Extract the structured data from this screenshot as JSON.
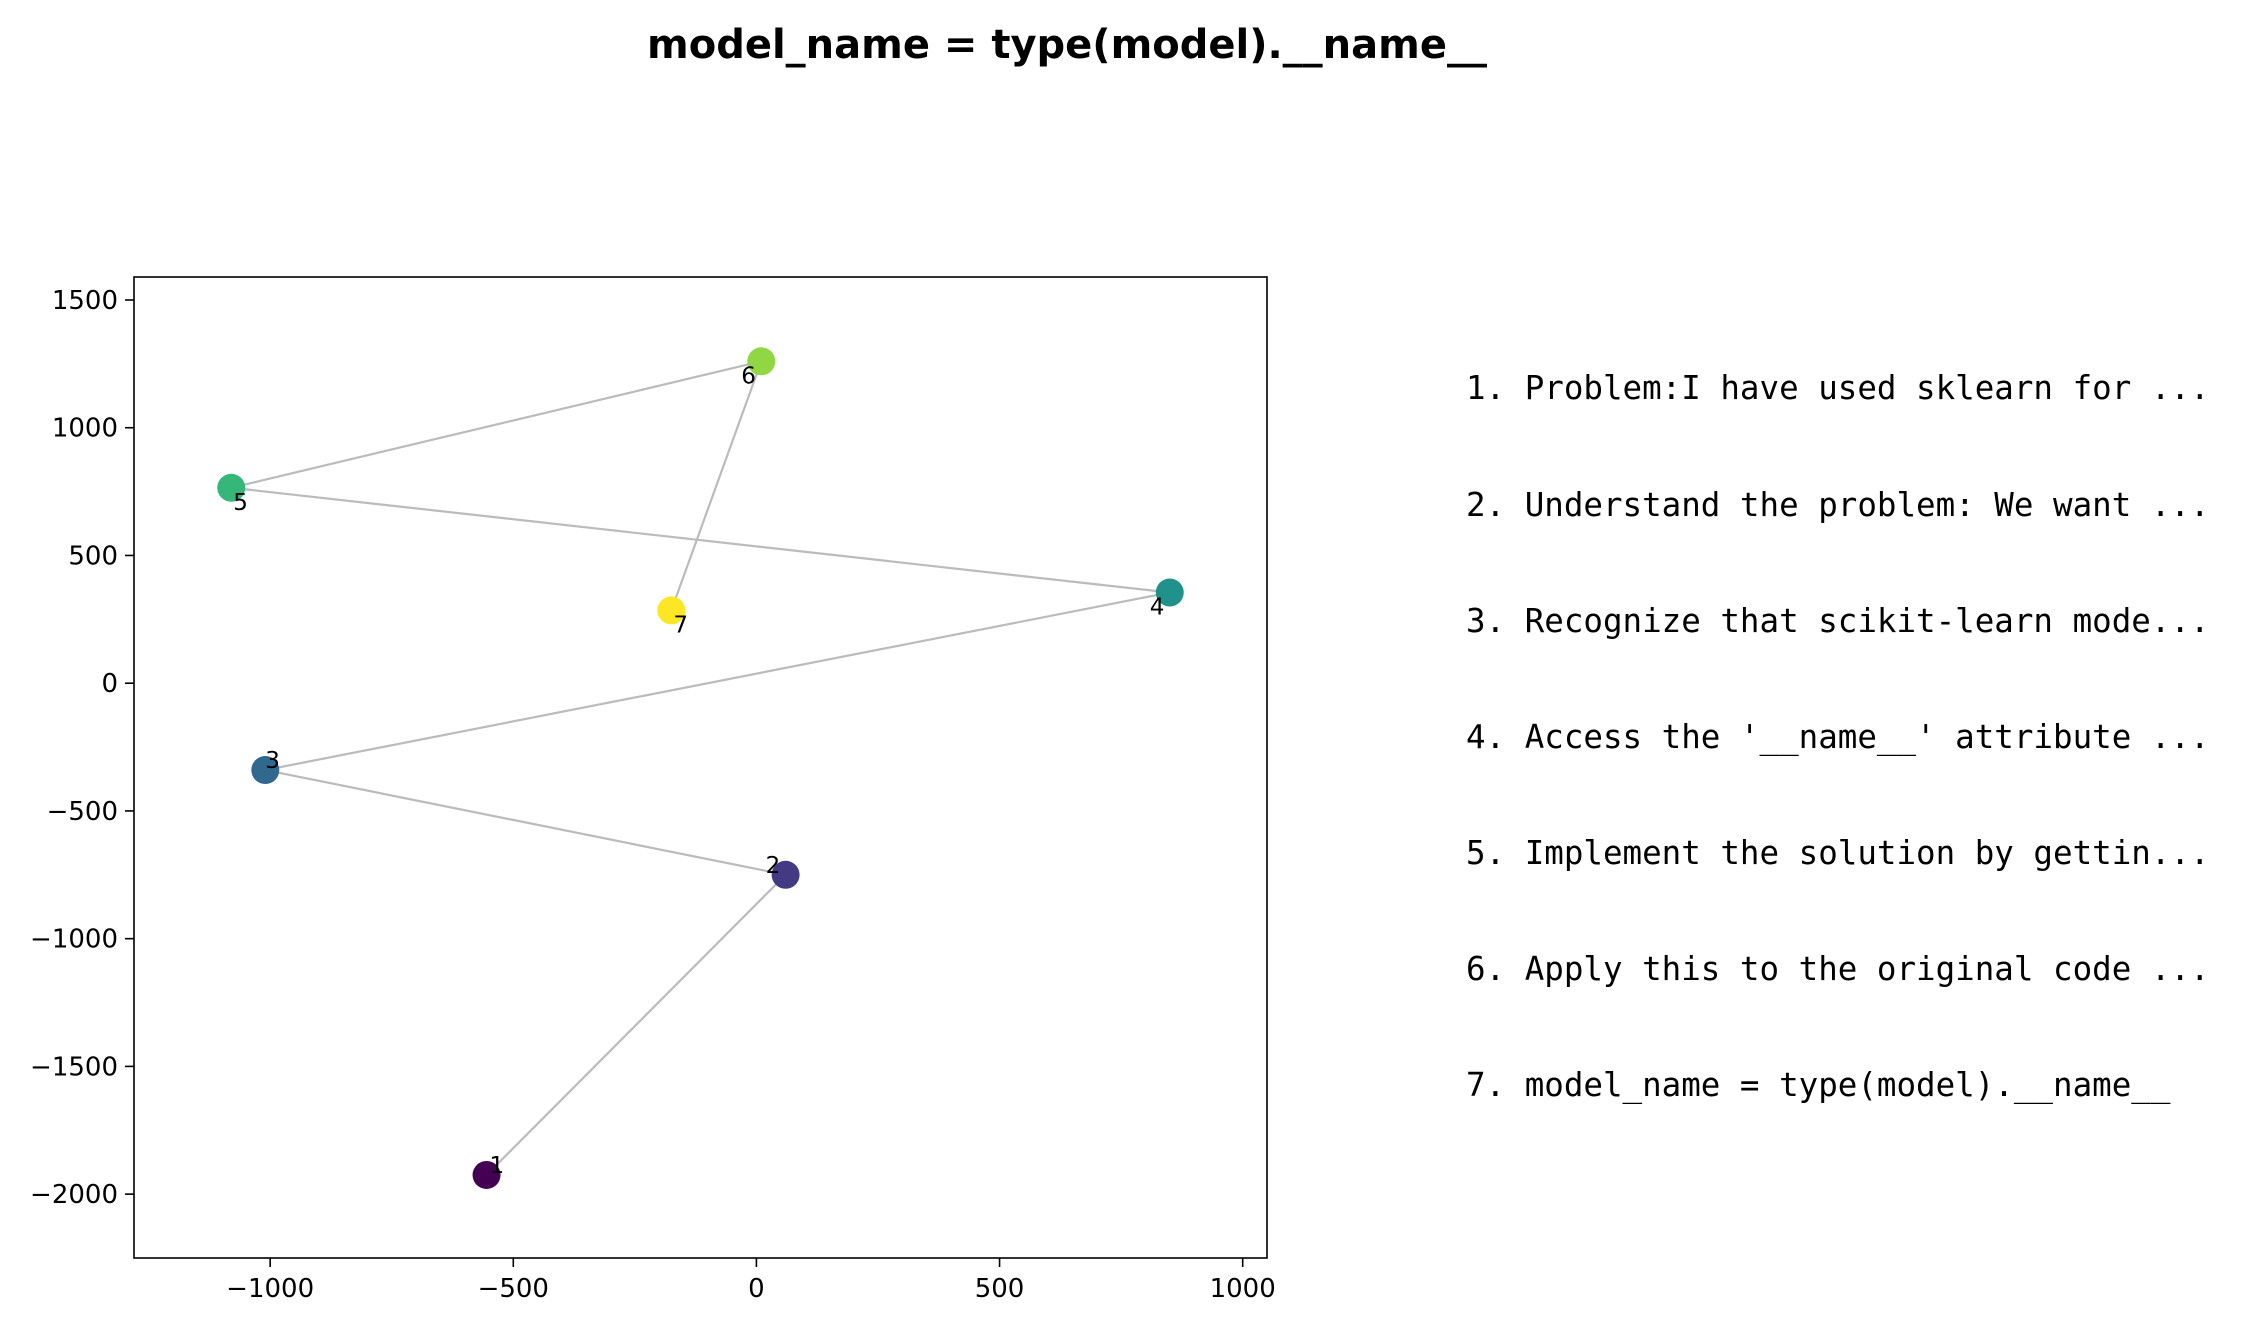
{
  "chart_data": {
    "type": "scatter",
    "title": "model_name = type(model).__name__",
    "xlabel": "",
    "ylabel": "",
    "xlim": [
      -1280,
      1050
    ],
    "ylim": [
      -2250,
      1590
    ],
    "xticks": [
      -1000,
      -500,
      0,
      500,
      1000
    ],
    "yticks": [
      -2000,
      -1500,
      -1000,
      -500,
      0,
      500,
      1000,
      1500
    ],
    "grid": false,
    "connect_points_in_order": true,
    "line_color": "#bbbbbb",
    "colormap": "viridis",
    "points": [
      {
        "label": "1",
        "x": -555,
        "y": -1925,
        "color": "#440154"
      },
      {
        "label": "2",
        "x": 60,
        "y": -750,
        "color": "#443983"
      },
      {
        "label": "3",
        "x": -1010,
        "y": -340,
        "color": "#31688e"
      },
      {
        "label": "4",
        "x": 850,
        "y": 355,
        "color": "#21918c"
      },
      {
        "label": "5",
        "x": -1080,
        "y": 765,
        "color": "#35b779"
      },
      {
        "label": "6",
        "x": 10,
        "y": 1260,
        "color": "#90d743"
      },
      {
        "label": "7",
        "x": -175,
        "y": 285,
        "color": "#fde725"
      }
    ]
  },
  "steps": [
    "1. Problem:I have used sklearn for ...",
    "2. Understand the problem: We want ...",
    "3. Recognize that scikit-learn mode...",
    "4. Access the '__name__' attribute ...",
    "5. Implement the solution by gettin...",
    "6. Apply this to the original code ...",
    "7. model_name = type(model).__name__"
  ]
}
